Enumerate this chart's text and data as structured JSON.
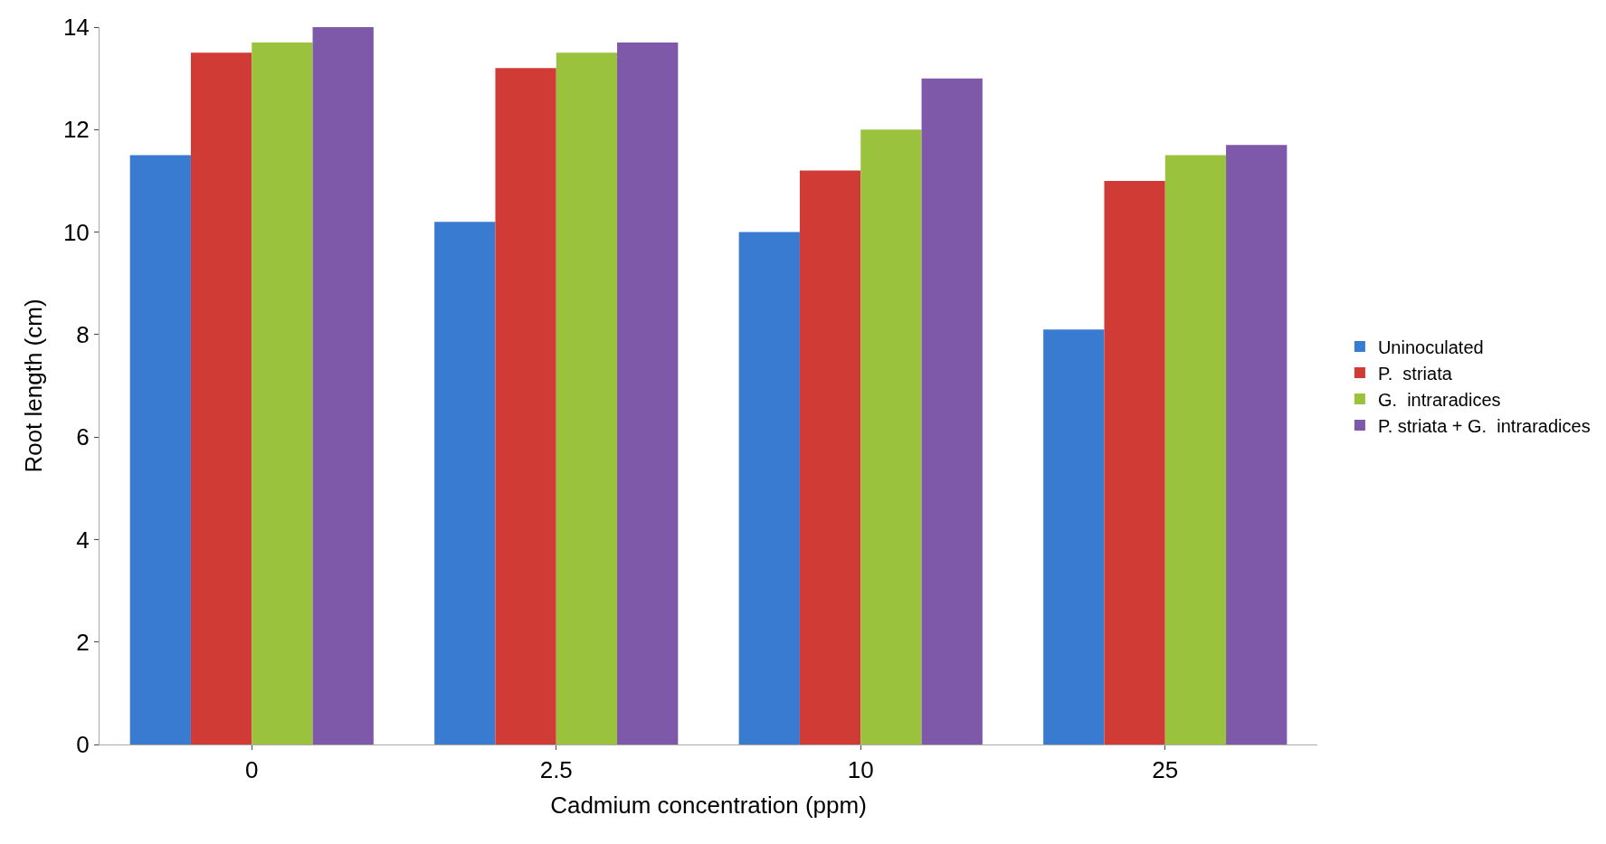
{
  "chart_data": {
    "type": "bar",
    "xlabel": "Cadmium concentration (ppm)",
    "ylabel": "Root length (cm)",
    "categories": [
      "0",
      "2.5",
      "10",
      "25"
    ],
    "series": [
      {
        "name": "Uninoculated",
        "color": "#3a7bd2",
        "values": [
          11.5,
          10.2,
          10.0,
          8.1
        ]
      },
      {
        "name": "P.  striata",
        "color": "#d03b36",
        "values": [
          13.5,
          13.2,
          11.2,
          11.0
        ]
      },
      {
        "name": "G.  intraradices",
        "color": "#9bc23d",
        "values": [
          13.7,
          13.5,
          12.0,
          11.5
        ]
      },
      {
        "name": "P. striata + G.  intraradices",
        "color": "#7e58a9",
        "values": [
          14.0,
          13.7,
          13.0,
          11.7
        ]
      }
    ],
    "ylim": [
      0,
      14
    ],
    "yticks": [
      0,
      2,
      4,
      6,
      8,
      10,
      12,
      14
    ],
    "legend": "right"
  }
}
